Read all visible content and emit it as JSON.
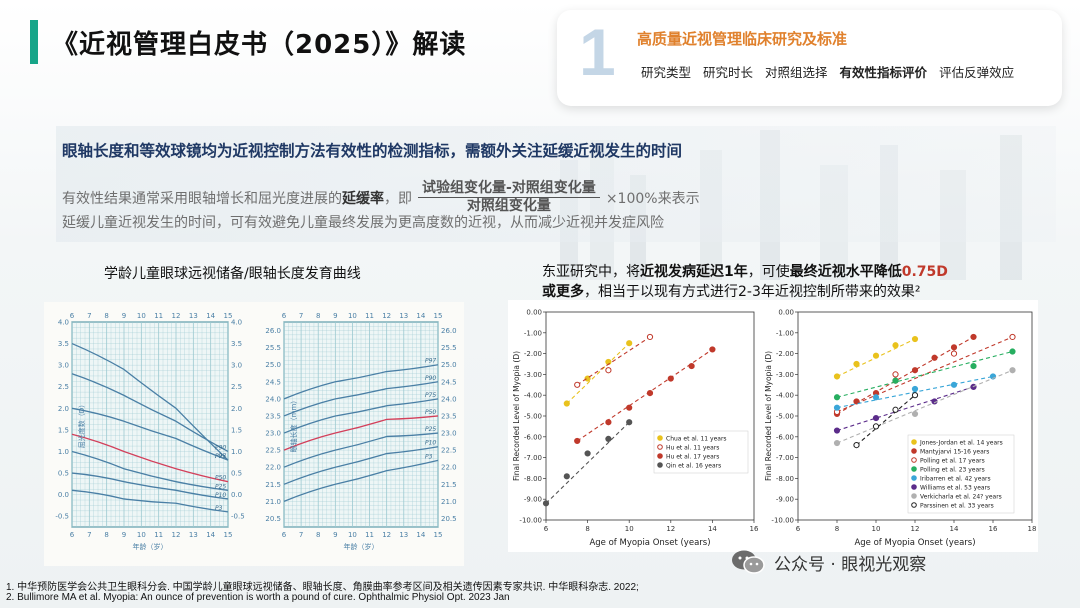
{
  "title": "《近视管理白皮书（2025）》解读",
  "card": {
    "number": "1",
    "title": "高质量近视管理临床研究及标准",
    "items": [
      "研究类型",
      "研究时长",
      "对照组选择",
      "有效性指标评价",
      "评估反弹效应"
    ]
  },
  "headline": "眼轴长度和等效球镜均为近视控制方法有效性的检测指标，需额外关注延缓近视发生的时间",
  "line2": {
    "pre": "有效性结果通常采用眼轴增长和屈光度进展的",
    "bold": "延缓率",
    "mid": "，即",
    "numerator": "试验组变化量-对照组变化量",
    "denominator": "对照组变化量",
    "post": "×100%来表示"
  },
  "line3": "延缓儿童近视发生的时间，可有效避免儿童最终发展为更高度数的近视，从而减少近视并发症风险",
  "left_caption": "学龄儿童眼球远视储备/眼轴长度发育曲线",
  "right_caption": {
    "p1": "东亚研究中，将",
    "b1": "近视发病延迟1年",
    "p2": "，可使",
    "b2": "最终近视水平降低",
    "red": "0.75D",
    "b3": "或更多",
    "p3": "，相当于以现有方式进行2-3年近视控制所带来的效果²"
  },
  "refs": [
    "1. 中华预防医学会公共卫生眼科分会. 中国学龄儿童眼球远视储备、眼轴长度、角膜曲率参考区间及相关遗传因素专家共识. 中华眼科杂志. 2022;",
    "2. Bullimore MA et al. Myopia: An ounce of prevention is worth a pound of cure. Ophthalmic Physiol Opt. 2023 Jan"
  ],
  "watermark": "公众号 · 眼视光观察",
  "chart_data": [
    {
      "type": "line",
      "title": "",
      "xlabel": "年龄（岁）",
      "ylabel": "屈光度数（D）",
      "x_ticks": [
        6,
        7,
        8,
        9,
        10,
        11,
        12,
        13,
        14,
        15
      ],
      "xlim": [
        6,
        15
      ],
      "ylim": [
        -0.75,
        4.0
      ],
      "y_ticks": [
        -0.5,
        0.0,
        0.5,
        1.0,
        1.5,
        2.0,
        2.5,
        3.0,
        3.5,
        4.0
      ],
      "series": [
        {
          "name": "P97",
          "color": "#4a7fa5",
          "x": [
            6,
            9,
            12,
            15
          ],
          "values": [
            3.5,
            2.9,
            2.0,
            0.8
          ]
        },
        {
          "name": "P90",
          "color": "#4a7fa5",
          "x": [
            6,
            9,
            12,
            15
          ],
          "values": [
            2.8,
            2.3,
            1.7,
            1.0
          ]
        },
        {
          "name": "P75",
          "color": "#4a7fa5",
          "x": [
            6,
            9,
            12,
            15
          ],
          "values": [
            2.0,
            1.7,
            1.3,
            0.8
          ]
        },
        {
          "name": "P50",
          "color": "#d33f5a",
          "x": [
            6,
            9,
            12,
            15
          ],
          "values": [
            1.4,
            1.0,
            0.6,
            0.3
          ]
        },
        {
          "name": "P25",
          "color": "#4a7fa5",
          "x": [
            6,
            9,
            12,
            15
          ],
          "values": [
            1.0,
            0.6,
            0.3,
            0.1
          ]
        },
        {
          "name": "P10",
          "color": "#4a7fa5",
          "x": [
            6,
            9,
            12,
            15
          ],
          "values": [
            0.5,
            0.3,
            0.1,
            -0.1
          ]
        },
        {
          "name": "P3",
          "color": "#4a7fa5",
          "x": [
            6,
            9,
            12,
            15
          ],
          "values": [
            0.1,
            -0.1,
            -0.2,
            -0.4
          ]
        }
      ]
    },
    {
      "type": "line",
      "title": "",
      "xlabel": "年龄（岁）",
      "ylabel": "眼轴长度（mm）",
      "x_ticks": [
        6,
        7,
        8,
        9,
        10,
        11,
        12,
        13,
        14,
        15
      ],
      "xlim": [
        6,
        15
      ],
      "ylim": [
        20.25,
        26.25
      ],
      "y_ticks": [
        20.5,
        21.0,
        21.5,
        22.0,
        22.5,
        23.0,
        23.5,
        24.0,
        24.5,
        25.0,
        25.5,
        26.0
      ],
      "series": [
        {
          "name": "P97",
          "color": "#4a7fa5",
          "x": [
            6,
            9,
            12,
            15
          ],
          "values": [
            24.0,
            24.5,
            24.8,
            25.0
          ]
        },
        {
          "name": "P90",
          "color": "#4a7fa5",
          "x": [
            6,
            9,
            12,
            15
          ],
          "values": [
            23.5,
            24.0,
            24.3,
            24.5
          ]
        },
        {
          "name": "P75",
          "color": "#4a7fa5",
          "x": [
            6,
            9,
            12,
            15
          ],
          "values": [
            23.0,
            23.5,
            23.8,
            24.0
          ]
        },
        {
          "name": "P50",
          "color": "#d33f5a",
          "x": [
            6,
            9,
            12,
            15
          ],
          "values": [
            22.5,
            23.0,
            23.4,
            23.5
          ]
        },
        {
          "name": "P25",
          "color": "#4a7fa5",
          "x": [
            6,
            9,
            12,
            15
          ],
          "values": [
            22.0,
            22.5,
            22.9,
            23.0
          ]
        },
        {
          "name": "P10",
          "color": "#4a7fa5",
          "x": [
            6,
            9,
            12,
            15
          ],
          "values": [
            21.5,
            22.0,
            22.4,
            22.6
          ]
        },
        {
          "name": "P3",
          "color": "#4a7fa5",
          "x": [
            6,
            9,
            12,
            15
          ],
          "values": [
            21.0,
            21.5,
            21.9,
            22.2
          ]
        }
      ]
    },
    {
      "type": "scatter",
      "title": "",
      "xlabel": "Age of Myopia Onset (years)",
      "ylabel": "Final Recorded Level of Myopia (D)",
      "xlim": [
        6,
        16
      ],
      "ylim": [
        -10,
        0
      ],
      "x_ticks": [
        6,
        8,
        10,
        12,
        14,
        16
      ],
      "y_ticks": [
        0,
        -1,
        -2,
        -3,
        -4,
        -5,
        -6,
        -7,
        -8,
        -9,
        -10
      ],
      "series": [
        {
          "name": "Chua et al. 11 years",
          "color": "#e9c21d",
          "hollow": false,
          "x": [
            7,
            8,
            9,
            10
          ],
          "values": [
            -4.4,
            -3.2,
            -2.4,
            -1.5
          ]
        },
        {
          "name": "Hu et al. 11 years",
          "color": "#c0392b",
          "hollow": true,
          "x": [
            7.5,
            9,
            11
          ],
          "values": [
            -3.5,
            -2.8,
            -1.2
          ]
        },
        {
          "name": "Hu et al. 17 years",
          "color": "#c0392b",
          "hollow": false,
          "x": [
            7.5,
            9,
            10,
            11,
            12,
            13,
            14
          ],
          "values": [
            -6.2,
            -5.3,
            -4.6,
            -3.9,
            -3.2,
            -2.6,
            -1.8
          ]
        },
        {
          "name": "Qin et al. 16 years",
          "color": "#555555",
          "hollow": false,
          "x": [
            6,
            7,
            8,
            9,
            10
          ],
          "values": [
            -9.2,
            -7.9,
            -6.8,
            -6.1,
            -5.3
          ]
        }
      ]
    },
    {
      "type": "scatter",
      "title": "",
      "xlabel": "Age of Myopia Onset (years)",
      "ylabel": "Final Recorded Level of Myopia (D)",
      "xlim": [
        6,
        18
      ],
      "ylim": [
        -10,
        0
      ],
      "x_ticks": [
        6,
        8,
        10,
        12,
        14,
        16,
        18
      ],
      "y_ticks": [
        0,
        -1,
        -2,
        -3,
        -4,
        -5,
        -6,
        -7,
        -8,
        -9,
        -10
      ],
      "series": [
        {
          "name": "Jones-Jordan et al. 14 years",
          "color": "#e9c21d",
          "hollow": false,
          "x": [
            8,
            9,
            10,
            11,
            12
          ],
          "values": [
            -3.1,
            -2.5,
            -2.1,
            -1.6,
            -1.3
          ]
        },
        {
          "name": "Mantyjarvi 15-16 years",
          "color": "#c0392b",
          "hollow": false,
          "x": [
            8,
            9,
            10,
            11,
            12,
            13,
            14,
            15
          ],
          "values": [
            -4.9,
            -4.3,
            -3.9,
            -3.3,
            -2.8,
            -2.2,
            -1.7,
            -1.2
          ]
        },
        {
          "name": "Polling et al. 17 years",
          "color": "#c0392b",
          "hollow": true,
          "x": [
            8,
            11,
            14,
            17
          ],
          "values": [
            -4.8,
            -3.0,
            -2.0,
            -1.2
          ]
        },
        {
          "name": "Polling et al. 23 years",
          "color": "#27ae60",
          "hollow": false,
          "x": [
            8,
            11,
            15,
            17
          ],
          "values": [
            -4.1,
            -3.3,
            -2.6,
            -1.9
          ]
        },
        {
          "name": "Iribarren et al. 42 years",
          "color": "#3aa6d8",
          "hollow": false,
          "x": [
            8,
            10,
            12,
            14,
            16
          ],
          "values": [
            -4.6,
            -4.1,
            -3.7,
            -3.5,
            -3.1
          ]
        },
        {
          "name": "Williams et al. 53 years",
          "color": "#5b2c8a",
          "hollow": false,
          "x": [
            8,
            10,
            13,
            15
          ],
          "values": [
            -5.7,
            -5.1,
            -4.3,
            -3.6
          ]
        },
        {
          "name": "Verkicharla et al. 24? years",
          "color": "#b0b0b0",
          "hollow": false,
          "x": [
            8,
            12,
            17
          ],
          "values": [
            -6.3,
            -4.9,
            -2.8
          ]
        },
        {
          "name": "Parssinen et al. 33 years",
          "color": "#222222",
          "hollow": true,
          "x": [
            9,
            10,
            11,
            12
          ],
          "values": [
            -6.4,
            -5.5,
            -4.7,
            -4.0
          ]
        }
      ]
    }
  ]
}
